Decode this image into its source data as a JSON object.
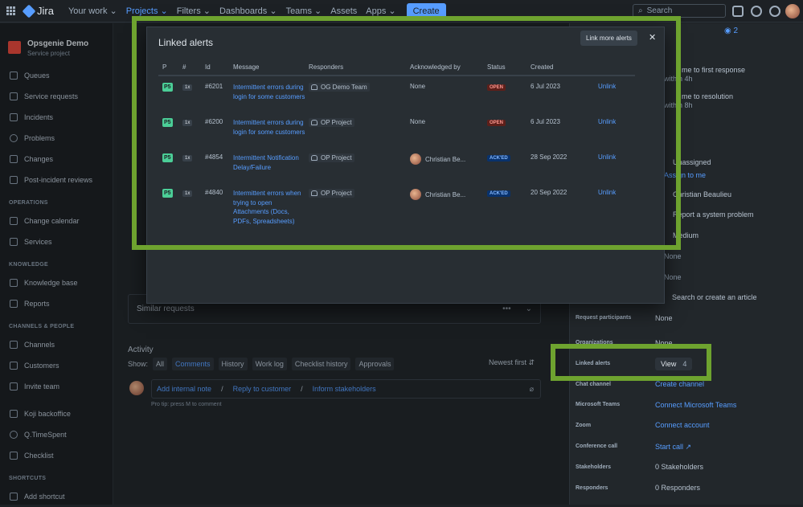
{
  "topnav": {
    "logo": "Jira",
    "items": [
      {
        "label": "Your work ⌄",
        "active": false
      },
      {
        "label": "Projects ⌄",
        "active": true
      },
      {
        "label": "Filters ⌄",
        "active": false
      },
      {
        "label": "Dashboards ⌄",
        "active": false
      },
      {
        "label": "Teams ⌄",
        "active": false
      },
      {
        "label": "Assets",
        "active": false
      },
      {
        "label": "Apps ⌄",
        "active": false
      }
    ],
    "create_label": "Create",
    "search_placeholder": "Search"
  },
  "sidebar": {
    "project_name": "Opsgenie Demo",
    "project_type": "Service project",
    "items": [
      {
        "label": "Queues",
        "icon": "queues-icon"
      },
      {
        "label": "Service requests",
        "icon": "chat-icon"
      },
      {
        "label": "Incidents",
        "icon": "warning-icon"
      },
      {
        "label": "Problems",
        "icon": "problem-icon"
      },
      {
        "label": "Changes",
        "icon": "changes-icon"
      },
      {
        "label": "Post-incident reviews",
        "icon": "review-icon"
      }
    ],
    "operations_heading": "OPERATIONS",
    "operations": [
      {
        "label": "Change calendar",
        "icon": "calendar-icon"
      },
      {
        "label": "Services",
        "icon": "services-icon"
      }
    ],
    "knowledge_heading": "KNOWLEDGE",
    "knowledge": [
      {
        "label": "Knowledge base",
        "icon": "book-icon"
      },
      {
        "label": "Reports",
        "icon": "reports-icon"
      }
    ],
    "channels_heading": "CHANNELS & PEOPLE",
    "channels": [
      {
        "label": "Channels",
        "icon": "monitor-icon"
      },
      {
        "label": "Customers",
        "icon": "people-icon"
      },
      {
        "label": "Invite team",
        "icon": "person-add-icon"
      }
    ],
    "apps": [
      {
        "label": "Koji backoffice",
        "icon": "app-icon"
      },
      {
        "label": "Q.TimeSpent",
        "icon": "gear-icon"
      },
      {
        "label": "Checklist",
        "icon": "checklist-icon"
      }
    ],
    "shortcuts_heading": "SHORTCUTS",
    "add_shortcut": "Add shortcut"
  },
  "main": {
    "similar_requests": "Similar requests",
    "activity_title": "Activity",
    "show_label": "Show:",
    "tabs": [
      "All",
      "Comments",
      "History",
      "Work log",
      "Checklist history",
      "Approvals"
    ],
    "newest_first": "Newest first ⇵",
    "add_internal_note": "Add internal note",
    "reply_to_customer": "Reply to customer",
    "inform_stakeholders": "Inform stakeholders",
    "sep": "/",
    "protip": "Pro tip: press M to comment"
  },
  "right_panel": {
    "first_response": "me to first response",
    "first_response_val": "within 4h",
    "resolution": "me to resolution",
    "resolution_val": "within 8h",
    "assignee": "Unassigned",
    "assign_me": "Assign to me",
    "reporter": "Christian Beaulieu",
    "request_type": "Report a system problem",
    "priority": "Medium",
    "none1": "None",
    "none2": "None",
    "search_article": "Search or create an article",
    "fields": [
      {
        "label": "Request participants",
        "value": "None",
        "link": false
      },
      {
        "label": "Organizations",
        "value": "None",
        "link": false
      },
      {
        "label": "Chat channel",
        "value": "Create channel",
        "link": true
      },
      {
        "label": "Microsoft Teams",
        "value": "Connect Microsoft Teams",
        "link": true
      },
      {
        "label": "Zoom",
        "value": "Connect account",
        "link": true
      },
      {
        "label": "Conference call",
        "value": "Start call ↗",
        "link": true
      },
      {
        "label": "Stakeholders",
        "value": "0 Stakeholders",
        "link": false
      },
      {
        "label": "Responders",
        "value": "0 Responders",
        "link": false
      }
    ],
    "linked_alerts_label": "Linked alerts",
    "view_label": "View",
    "view_count": "4",
    "watch_count": "2"
  },
  "modal": {
    "title": "Linked alerts",
    "link_more": "Link more alerts",
    "close": "✕",
    "columns": [
      "P",
      "#",
      "Id",
      "Message",
      "Responders",
      "Acknowledged by",
      "Status",
      "Created",
      ""
    ],
    "rows": [
      {
        "priority": "P5",
        "count": "1x",
        "id": "#6201",
        "message": "Intermittent errors during login for some customers",
        "responder": "OG Demo Team",
        "ack": "None",
        "status": "OPEN",
        "created": "6 Jul 2023",
        "action": "Unlink"
      },
      {
        "priority": "P5",
        "count": "1x",
        "id": "#6200",
        "message": "Intermittent errors during login for some customers",
        "responder": "OP Project",
        "ack": "None",
        "status": "OPEN",
        "created": "6 Jul 2023",
        "action": "Unlink"
      },
      {
        "priority": "P5",
        "count": "1x",
        "id": "#4854",
        "message": "Intermittent Notification Delay/Failure",
        "responder": "OP Project",
        "ack": "Christian Be...",
        "status": "ACK'ED",
        "created": "28 Sep 2022",
        "action": "Unlink"
      },
      {
        "priority": "P5",
        "count": "1x",
        "id": "#4840",
        "message": "Intermittent errors when trying to open Attachments (Docs, PDFs, Spreadsheets)",
        "responder": "OP Project",
        "ack": "Christian Be...",
        "status": "ACK'ED",
        "created": "20 Sep 2022",
        "action": "Unlink"
      }
    ]
  },
  "colors": {
    "highlight": "#6ea32f",
    "link": "#579dff",
    "priority": "#4bce97"
  }
}
